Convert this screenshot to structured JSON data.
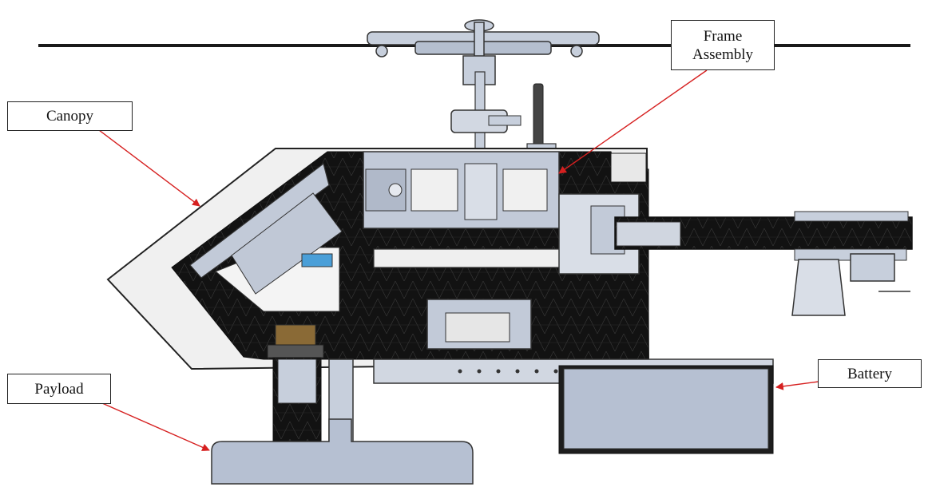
{
  "labels": {
    "canopy": "Canopy",
    "frame": "Frame\nAssembly",
    "payload": "Payload",
    "battery": "Battery"
  },
  "colors": {
    "carbon": "#111111",
    "panel": "#b9c3d4",
    "panel_dark": "#98a3b6",
    "leader": "#d62020",
    "canopy_fill": "#f0f0f0",
    "outline": "#222222"
  }
}
